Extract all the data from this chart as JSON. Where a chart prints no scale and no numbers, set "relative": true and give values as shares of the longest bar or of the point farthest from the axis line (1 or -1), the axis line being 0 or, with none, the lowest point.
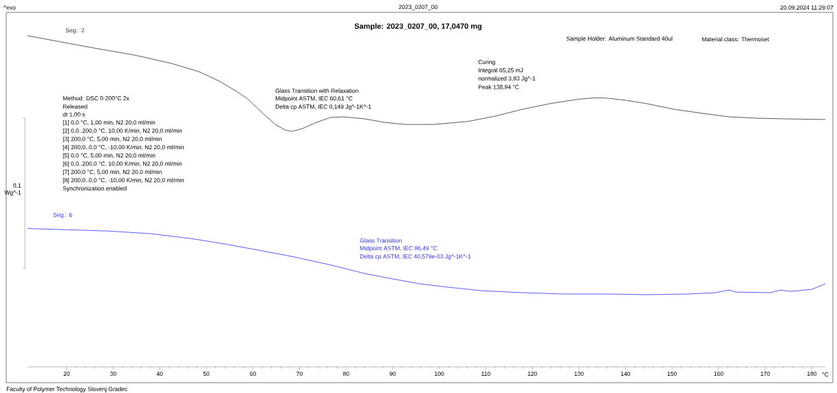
{
  "chart_data": {
    "type": "line",
    "title": "Sample: 2023_0207_00, 17,0470 mg",
    "xlabel": "°C",
    "ylabel": "0,1 Wg^-1",
    "relative": true,
    "xlim": [
      11.6,
      182.9
    ],
    "xticks": [
      20,
      30,
      40,
      50,
      60,
      70,
      80,
      90,
      100,
      110,
      120,
      130,
      140,
      150,
      160,
      170,
      180
    ],
    "series": [
      {
        "name": "Seg.: 2",
        "color": "#303030",
        "x": [
          11.6,
          20.4,
          27.8,
          34.8,
          42.6,
          48.5,
          52.9,
          56.6,
          58.8,
          61.8,
          64.8,
          67.0,
          68.4,
          70.7,
          73.6,
          76.6,
          79.5,
          84.0,
          88.4,
          92.8,
          98.7,
          106.1,
          112.0,
          117.9,
          123.8,
          129.7,
          133.0,
          135.7,
          140.1,
          144.5,
          150.4,
          156.3,
          162.2,
          168.2,
          174.1,
          182.9
        ],
        "values": [
          1.0,
          0.977,
          0.958,
          0.941,
          0.916,
          0.891,
          0.862,
          0.831,
          0.81,
          0.77,
          0.732,
          0.715,
          0.711,
          0.72,
          0.738,
          0.753,
          0.755,
          0.749,
          0.738,
          0.732,
          0.732,
          0.741,
          0.757,
          0.778,
          0.795,
          0.808,
          0.812,
          0.812,
          0.805,
          0.795,
          0.778,
          0.766,
          0.755,
          0.751,
          0.749,
          0.747
        ]
      },
      {
        "name": "Seg.: 6",
        "color": "#3030ff",
        "x": [
          11.6,
          20.4,
          29.3,
          38.2,
          47.0,
          54.4,
          61.8,
          69.2,
          76.6,
          84.0,
          89.9,
          95.8,
          101.7,
          109.1,
          117.9,
          126.8,
          135.7,
          144.5,
          153.4,
          159.3,
          162.2,
          163.7,
          171.1,
          173.3,
          175.5,
          180.0,
          182.9
        ],
        "values": [
          0.418,
          0.414,
          0.41,
          0.402,
          0.387,
          0.37,
          0.351,
          0.331,
          0.308,
          0.282,
          0.266,
          0.251,
          0.241,
          0.23,
          0.224,
          0.22,
          0.22,
          0.218,
          0.22,
          0.224,
          0.232,
          0.226,
          0.224,
          0.232,
          0.228,
          0.234,
          0.251
        ]
      }
    ],
    "annotations": [
      "^exo",
      "2023_0207_00",
      "20.09.2024 11:29:07",
      "Sample Holder: Aluminum Standard 40ul",
      "Material class: Thermoset",
      "Method: DSC 0-200°C 2x",
      "Released",
      "dt 1,00 s",
      "[1] 0,0 °C, 1,00 min, N2 20,0 ml/min",
      "[2] 0,0..200,0 °C, 10,00 K/min, N2 20,0 ml/min",
      "[3] 200,0 °C, 5,00 min, N2 20,0 ml/min",
      "[4] 200,0..0,0 °C, -10,00 K/min, N2 20,0 ml/min",
      "[5] 0,0 °C, 5,00 min, N2 20,0 ml/min",
      "[6] 0,0..200,0 °C, 10,00 K/min, N2 20,0 ml/min",
      "[7] 200,0 °C, 5,00 min, N2 20,0 ml/min",
      "[8] 200,0..0,0 °C, -10,00 K/min, N2 20,0 ml/min",
      "Synchronization enabled",
      "Faculty of Polymer Technology Slovenj Gradec",
      "Glass Transition with Relaxation",
      "Midpoint ASTM, IEC 60,61 °C",
      "Delta cp ASTM, IEC 0,149 Jg^-1K^-1",
      "Curing",
      "Integral 65,25 mJ",
      "normalized 3,83 Jg^-1",
      "Peak 138,94 °C",
      "Glass Transition",
      "Midpoint ASTM, IEC 86,49 °C",
      "Delta cp ASTM, IEC 40,579e-03 Jg^-1K^-1"
    ]
  }
}
